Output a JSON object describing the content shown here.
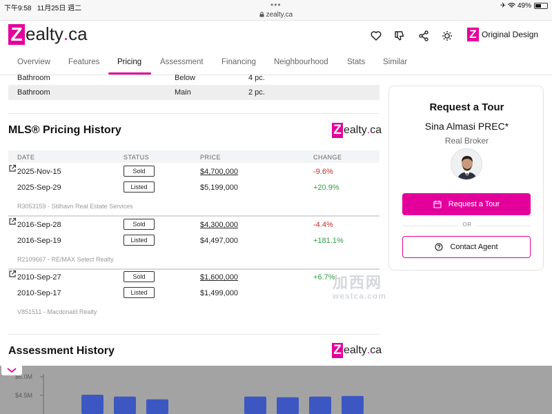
{
  "status_bar": {
    "time": "下午9:58",
    "date": "11月25日 週二",
    "url": "zealty.ca",
    "battery": "49%",
    "battery_level": 0.49
  },
  "header": {
    "logo_letter": "Z",
    "logo_text": "ealty",
    "logo_dot": ".",
    "logo_tld": "ca",
    "original_design_letter": "Z",
    "original_design_label": "Original Design",
    "icons": [
      "heart-icon",
      "thumbs-down-icon",
      "share-icon",
      "sun-icon"
    ]
  },
  "tabs": [
    {
      "label": "Overview",
      "active": false
    },
    {
      "label": "Features",
      "active": false
    },
    {
      "label": "Pricing",
      "active": true
    },
    {
      "label": "Assessment",
      "active": false
    },
    {
      "label": "Financing",
      "active": false
    },
    {
      "label": "Neighbourhood",
      "active": false
    },
    {
      "label": "Stats",
      "active": false
    },
    {
      "label": "Similar",
      "active": false
    }
  ],
  "rooms": [
    {
      "type": "Bathroom",
      "level": "Below",
      "pieces": "4 pc."
    },
    {
      "type": "Bathroom",
      "level": "Main",
      "pieces": "2 pc."
    }
  ],
  "pricing_history": {
    "title": "MLS® Pricing History",
    "columns": {
      "date": "DATE",
      "status": "STATUS",
      "price": "PRICE",
      "change": "CHANGE"
    },
    "groups": [
      {
        "rows": [
          {
            "date": "2025-Nov-15",
            "status": "Sold",
            "price": "$4,700,000",
            "link": true,
            "change": "-9.6%"
          },
          {
            "date": "2025-Sep-29",
            "status": "Listed",
            "price": "$5,199,000",
            "link": false,
            "change": "+20.9%"
          }
        ],
        "mls": "R3053159 - Stilhavn Real Estate Services"
      },
      {
        "rows": [
          {
            "date": "2016-Sep-28",
            "status": "Sold",
            "price": "$4,300,000",
            "link": true,
            "change": "-4.4%"
          },
          {
            "date": "2016-Sep-19",
            "status": "Listed",
            "price": "$4,497,000",
            "link": false,
            "change": "+181.1%"
          }
        ],
        "mls": "R2109667 - RE/MAX Select Realty"
      },
      {
        "rows": [
          {
            "date": "2010-Sep-27",
            "status": "Sold",
            "price": "$1,600,000",
            "link": true,
            "change": "+6.7%"
          },
          {
            "date": "2010-Sep-17",
            "status": "Listed",
            "price": "$1,499,000",
            "link": false,
            "change": ""
          }
        ],
        "mls": "V851511 - Macdonald Realty"
      }
    ]
  },
  "assessment": {
    "title": "Assessment History",
    "y_ticks": [
      "$6.0M",
      "$4.5M"
    ]
  },
  "tour_card": {
    "title": "Request a Tour",
    "agent_name": "Sina Almasi PREC*",
    "agent_role": "Real Broker",
    "request_button": "Request a Tour",
    "or_text": "OR",
    "contact_button": "Contact Agent"
  },
  "watermark": {
    "cn": "加西网",
    "en": "westca.com"
  },
  "colors": {
    "brand": "#e3009b",
    "negative": "#c62828",
    "positive": "#2e9e3e",
    "chart_bar": "#3b55c8"
  },
  "chart_data": {
    "type": "bar",
    "title": "",
    "xlabel": "",
    "ylabel": "",
    "y_ticks": [
      6.0,
      4.5
    ],
    "categories": [
      "",
      "",
      "",
      "",
      "",
      "",
      ""
    ],
    "values": [
      4.55,
      4.4,
      4.18,
      4.4,
      4.35,
      4.4,
      4.45
    ],
    "ylim": [
      3.8,
      6.0
    ]
  }
}
